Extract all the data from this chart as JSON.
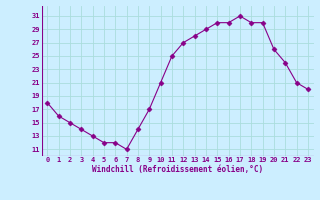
{
  "x": [
    0,
    1,
    2,
    3,
    4,
    5,
    6,
    7,
    8,
    9,
    10,
    11,
    12,
    13,
    14,
    15,
    16,
    17,
    18,
    19,
    20,
    21,
    22,
    23
  ],
  "y": [
    18,
    16,
    15,
    14,
    13,
    12,
    12,
    11,
    14,
    17,
    21,
    25,
    27,
    28,
    29,
    30,
    30,
    31,
    30,
    30,
    26,
    24,
    21,
    20
  ],
  "line_color": "#880088",
  "marker": "D",
  "marker_size": 2.5,
  "bg_color": "#cceeff",
  "grid_color": "#aadddd",
  "xlabel": "Windchill (Refroidissement éolien,°C)",
  "xlabel_color": "#880088",
  "yticks": [
    11,
    13,
    15,
    17,
    19,
    21,
    23,
    25,
    27,
    29,
    31
  ],
  "ylim": [
    10.0,
    32.5
  ],
  "xlim": [
    -0.5,
    23.5
  ],
  "xtick_labels": [
    "0",
    "1",
    "2",
    "3",
    "4",
    "5",
    "6",
    "7",
    "8",
    "9",
    "10",
    "11",
    "12",
    "13",
    "14",
    "15",
    "16",
    "17",
    "18",
    "19",
    "20",
    "21",
    "22",
    "23"
  ],
  "tick_fontsize": 5.0,
  "xlabel_fontsize": 5.5,
  "separator_color": "#880088"
}
